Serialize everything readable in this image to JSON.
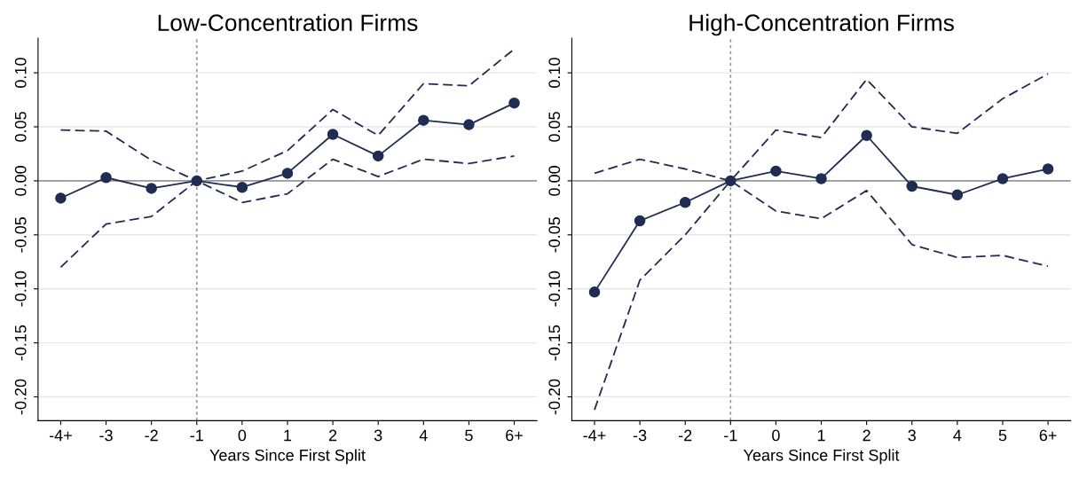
{
  "chart_data": [
    {
      "type": "line",
      "title": "Low-Concentration Firms",
      "xlabel": "Years Since First Split",
      "categories": [
        "-4+",
        "-3",
        "-2",
        "-1",
        "0",
        "1",
        "2",
        "3",
        "4",
        "5",
        "6+"
      ],
      "series": [
        {
          "color": "#1f2d52",
          "marker": "circle",
          "line_style": "solid",
          "values": [
            -0.016,
            0.003,
            -0.007,
            0.0,
            -0.006,
            0.007,
            0.043,
            0.023,
            0.056,
            0.052,
            0.072
          ]
        },
        {
          "color": "#1f2d52",
          "marker": "none",
          "line_style": "dashed",
          "values": [
            0.047,
            0.046,
            0.019,
            0.0,
            0.009,
            0.028,
            0.066,
            0.042,
            0.09,
            0.088,
            0.122
          ]
        },
        {
          "color": "#1f2d52",
          "marker": "none",
          "line_style": "dashed",
          "values": [
            -0.08,
            -0.04,
            -0.033,
            0.0,
            -0.02,
            -0.012,
            0.02,
            0.004,
            0.02,
            0.016,
            0.023
          ]
        }
      ],
      "ylim": [
        -0.222,
        0.132
      ],
      "yticks": [
        {
          "value": -0.2,
          "label": "-0.20"
        },
        {
          "value": -0.15,
          "label": "-0.15"
        },
        {
          "value": -0.1,
          "label": "-0.10"
        },
        {
          "value": -0.05,
          "label": "-0.05"
        },
        {
          "value": 0,
          "label": "0.00"
        },
        {
          "value": 0.05,
          "label": "0.05"
        },
        {
          "value": 0.1,
          "label": "0.10"
        }
      ],
      "grid": "y",
      "legend": false,
      "ref_lines": [
        {
          "axis": "y",
          "value": 0,
          "color": "#999999",
          "line_style": "solid"
        },
        {
          "axis": "x",
          "value": "-1",
          "color": "#999999",
          "line_style": "dotted"
        }
      ]
    },
    {
      "type": "line",
      "title": "High-Concentration Firms",
      "xlabel": "Years Since First Split",
      "categories": [
        "-4+",
        "-3",
        "-2",
        "-1",
        "0",
        "1",
        "2",
        "3",
        "4",
        "5",
        "6+"
      ],
      "series": [
        {
          "color": "#1f2d52",
          "marker": "circle",
          "line_style": "solid",
          "values": [
            -0.103,
            -0.037,
            -0.02,
            0.0,
            0.009,
            0.002,
            0.042,
            -0.005,
            -0.013,
            0.002,
            0.011
          ]
        },
        {
          "color": "#1f2d52",
          "marker": "none",
          "line_style": "dashed",
          "values": [
            0.007,
            0.02,
            0.011,
            0.0,
            0.047,
            0.04,
            0.094,
            0.05,
            0.044,
            0.076,
            0.099
          ]
        },
        {
          "color": "#1f2d52",
          "marker": "none",
          "line_style": "dashed",
          "values": [
            -0.212,
            -0.092,
            -0.05,
            0.0,
            -0.028,
            -0.035,
            -0.009,
            -0.059,
            -0.071,
            -0.069,
            -0.079
          ]
        }
      ],
      "ylim": [
        -0.222,
        0.132
      ],
      "yticks": [
        {
          "value": -0.2,
          "label": "-0.20"
        },
        {
          "value": -0.15,
          "label": "-0.15"
        },
        {
          "value": -0.1,
          "label": "-0.10"
        },
        {
          "value": -0.05,
          "label": "-0.05"
        },
        {
          "value": 0,
          "label": "0.00"
        },
        {
          "value": 0.05,
          "label": "0.05"
        },
        {
          "value": 0.1,
          "label": "0.10"
        }
      ],
      "grid": "y",
      "legend": false,
      "ref_lines": [
        {
          "axis": "y",
          "value": 0,
          "color": "#999999",
          "line_style": "solid"
        },
        {
          "axis": "x",
          "value": "-1",
          "color": "#999999",
          "line_style": "dotted"
        }
      ]
    }
  ]
}
